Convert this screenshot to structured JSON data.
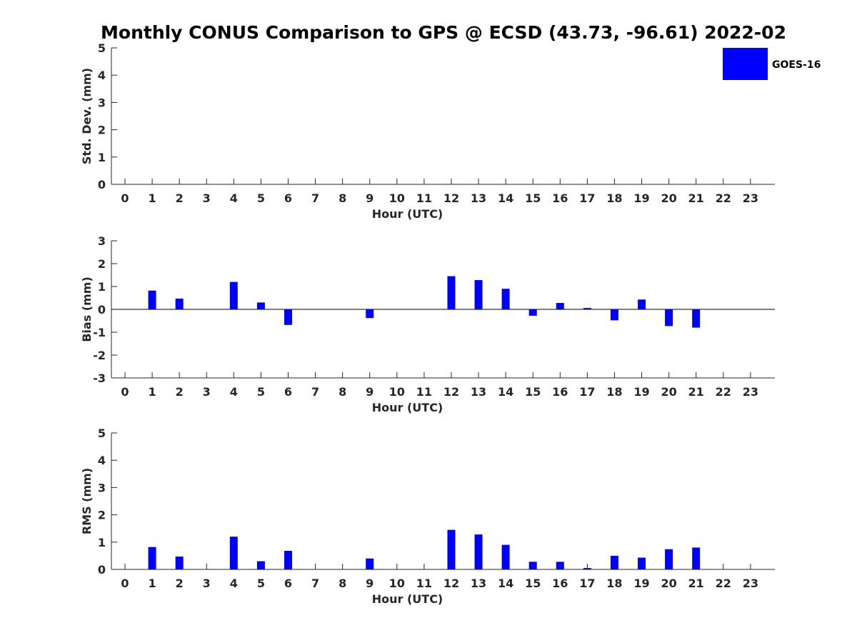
{
  "title": "Monthly CONUS Comparison to GPS @ ECSD (43.73, -96.61) 2022-02",
  "legend": {
    "label": "GOES-16",
    "color": "#0000ff",
    "placement": "top-right"
  },
  "chart_data": [
    {
      "type": "bar",
      "name": "std-dev",
      "xlabel": "Hour (UTC)",
      "ylabel": "Std. Dev. (mm)",
      "ylim": [
        0,
        5
      ],
      "yticks": [
        0,
        1,
        2,
        3,
        4,
        5
      ],
      "x": [
        0,
        1,
        2,
        3,
        4,
        5,
        6,
        7,
        8,
        9,
        10,
        11,
        12,
        13,
        14,
        15,
        16,
        17,
        18,
        19,
        20,
        21,
        22,
        23
      ],
      "values": [
        null,
        null,
        null,
        null,
        null,
        null,
        null,
        null,
        null,
        null,
        null,
        null,
        null,
        null,
        null,
        null,
        null,
        null,
        null,
        null,
        null,
        null,
        null,
        null
      ],
      "grid": false
    },
    {
      "type": "bar",
      "name": "bias",
      "xlabel": "Hour (UTC)",
      "ylabel": "Bias (mm)",
      "ylim": [
        -3,
        3
      ],
      "yticks": [
        -3,
        -2,
        -1,
        0,
        1,
        2,
        3
      ],
      "x": [
        0,
        1,
        2,
        3,
        4,
        5,
        6,
        7,
        8,
        9,
        10,
        11,
        12,
        13,
        14,
        15,
        16,
        17,
        18,
        19,
        20,
        21,
        22,
        23
      ],
      "values": [
        null,
        0.82,
        0.47,
        null,
        1.2,
        0.3,
        -0.68,
        null,
        null,
        -0.38,
        null,
        null,
        1.45,
        1.28,
        0.9,
        -0.28,
        0.28,
        0.06,
        -0.48,
        0.43,
        -0.73,
        -0.8,
        null,
        null
      ],
      "zero_line": true,
      "grid": false
    },
    {
      "type": "bar",
      "name": "rms",
      "xlabel": "Hour (UTC)",
      "ylabel": "RMS (mm)",
      "ylim": [
        0,
        5
      ],
      "yticks": [
        0,
        1,
        2,
        3,
        4,
        5
      ],
      "x": [
        0,
        1,
        2,
        3,
        4,
        5,
        6,
        7,
        8,
        9,
        10,
        11,
        12,
        13,
        14,
        15,
        16,
        17,
        18,
        19,
        20,
        21,
        22,
        23
      ],
      "values": [
        null,
        0.82,
        0.47,
        null,
        1.2,
        0.3,
        0.68,
        null,
        null,
        0.4,
        null,
        null,
        1.45,
        1.28,
        0.9,
        0.28,
        0.28,
        0.05,
        0.5,
        0.43,
        0.74,
        0.8,
        null,
        null
      ],
      "grid": false
    }
  ]
}
